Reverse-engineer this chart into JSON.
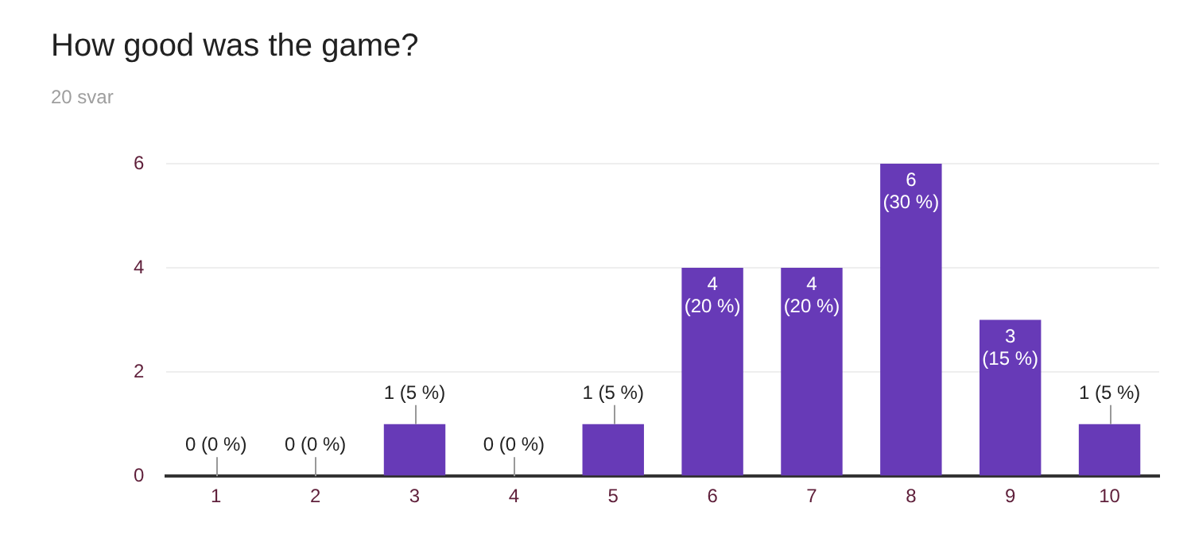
{
  "chart_data": {
    "type": "bar",
    "title": "How good was the game?",
    "subtitle": "20 svar",
    "categories": [
      "1",
      "2",
      "3",
      "4",
      "5",
      "6",
      "7",
      "8",
      "9",
      "10"
    ],
    "values": [
      0,
      0,
      1,
      0,
      1,
      4,
      4,
      6,
      3,
      1
    ],
    "value_labels": [
      "0 (0 %)",
      "0 (0 %)",
      "1 (5 %)",
      "0 (0 %)",
      "1 (5 %)",
      "4 (20 %)",
      "4 (20 %)",
      "6 (30 %)",
      "3 (15 %)",
      "1 (5 %)"
    ],
    "color": "#673ab7",
    "ylim": [
      0,
      6
    ],
    "yticks": [
      0,
      2,
      4,
      6
    ],
    "grid": "y",
    "legend": false
  }
}
